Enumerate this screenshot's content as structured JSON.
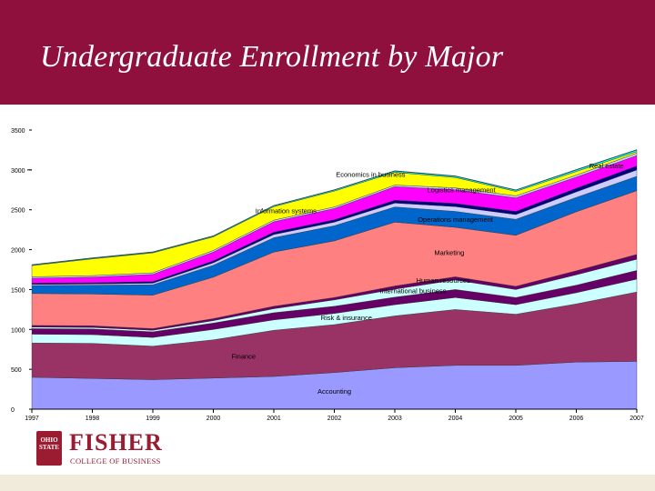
{
  "title": "Undergraduate Enrollment by Major",
  "logo": {
    "seal_text": "OHIO STATE",
    "name": "FISHER",
    "subtitle": "COLLEGE OF BUSINESS"
  },
  "chart_data": {
    "type": "area",
    "stacked": true,
    "title": "Undergraduate Enrollment by Major",
    "x": [
      "1997",
      "1998",
      "1999",
      "2000",
      "2001",
      "2002",
      "2003",
      "2004",
      "2005",
      "2006",
      "2007"
    ],
    "ylim": [
      0,
      3500
    ],
    "yticks": [
      "0",
      "500",
      "1000",
      "1500",
      "2000",
      "2500",
      "3000",
      "3500"
    ],
    "grid": false,
    "legend": "inline labels",
    "series": [
      {
        "name": "Accounting",
        "color": "#9999ff",
        "values": [
          400,
          385,
          370,
          390,
          410,
          460,
          520,
          550,
          550,
          590,
          600
        ]
      },
      {
        "name": "Finance",
        "color": "#993366",
        "values": [
          430,
          440,
          420,
          480,
          580,
          600,
          650,
          700,
          640,
          730,
          870
        ]
      },
      {
        "name": "Risk & insurance",
        "color": "#ccffff",
        "values": [
          110,
          110,
          110,
          130,
          130,
          140,
          140,
          150,
          120,
          140,
          160
        ]
      },
      {
        "name": "",
        "color": "#660066",
        "values": [
          70,
          70,
          70,
          80,
          90,
          90,
          95,
          100,
          90,
          95,
          110
        ]
      },
      {
        "name": "International business",
        "color": "#ccffff",
        "values": [
          20,
          20,
          20,
          30,
          50,
          80,
          100,
          120,
          100,
          130,
          140
        ]
      },
      {
        "name": "Human resources",
        "color": "#660066",
        "values": [
          20,
          20,
          20,
          25,
          30,
          30,
          40,
          40,
          40,
          50,
          60
        ]
      },
      {
        "name": "Marketing",
        "color": "#ff8080",
        "values": [
          400,
          400,
          420,
          520,
          680,
          710,
          800,
          620,
          640,
          740,
          800
        ]
      },
      {
        "name": "Operations management",
        "color": "#0066cc",
        "values": [
          100,
          110,
          130,
          150,
          180,
          190,
          190,
          200,
          200,
          180,
          180
        ]
      },
      {
        "name": "",
        "color": "#ccccff",
        "values": [
          15,
          15,
          20,
          30,
          40,
          45,
          50,
          60,
          60,
          70,
          80
        ]
      },
      {
        "name": "",
        "color": "#000080",
        "values": [
          15,
          15,
          20,
          25,
          30,
          30,
          35,
          40,
          40,
          45,
          50
        ]
      },
      {
        "name": "Real estate",
        "color": "#ff00ff",
        "values": [
          60,
          70,
          90,
          110,
          130,
          140,
          170,
          170,
          170,
          140,
          130
        ]
      },
      {
        "name": "Logistics management",
        "color": "#ccccff",
        "values": [
          20,
          20,
          20,
          20,
          20,
          20,
          20,
          25,
          25,
          25,
          30
        ]
      },
      {
        "name": "Information systems",
        "color": "#ffff00",
        "values": [
          140,
          210,
          250,
          170,
          170,
          200,
          160,
          130,
          55,
          45,
          20
        ]
      },
      {
        "name": "",
        "color": "#00ffff",
        "values": [
          8,
          8,
          8,
          10,
          10,
          12,
          15,
          15,
          15,
          20,
          20
        ]
      },
      {
        "name": "Economics in business",
        "color": "#008080",
        "values": [
          5,
          5,
          5,
          5,
          5,
          5,
          5,
          5,
          5,
          5,
          5
        ]
      }
    ]
  }
}
